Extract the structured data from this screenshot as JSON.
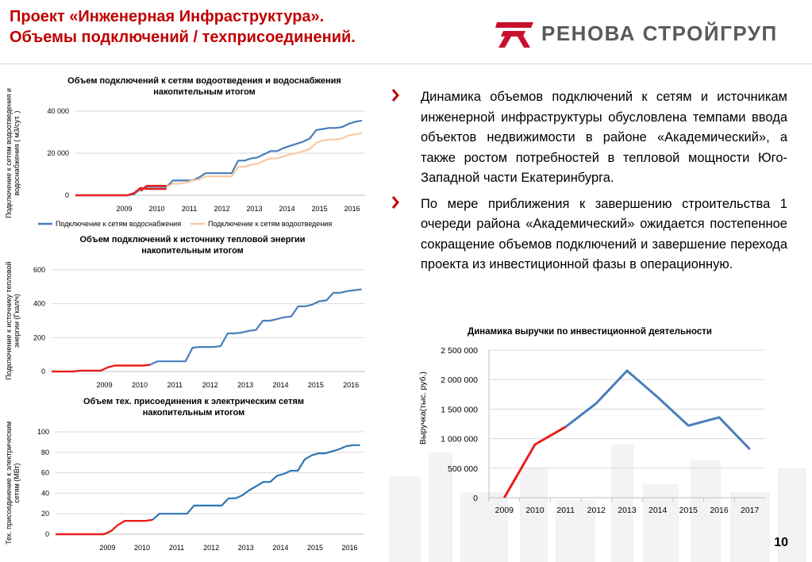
{
  "header": {
    "title_line1": "Проект «Инженерная Инфраструктура».",
    "title_line2": "Объемы подключений / техприсоединений.",
    "logo_text": "РЕНОВА СТРОЙГРУП"
  },
  "colors": {
    "accent_red": "#c00000",
    "blue": "#4a7ebb",
    "orange": "#f9c9a0",
    "red_line": "#e8201c",
    "grid": "#d9d9d9"
  },
  "bullets": [
    "Динамика объемов подключений к сетям и источникам инженерной инфраструктуры обусловлена темпами ввода объектов недвижимости в районе «Академический», а также ростом потребностей в тепловой мощности Юго-Западной части Екатеринбурга.",
    "По мере приближения к завершению строительства 1 очереди района «Академический» ожидается постепенное сокращение объемов подключений и завершение перехода проекта из инвестиционной фазы в операционную."
  ],
  "page_number": "10",
  "chart_data": [
    {
      "type": "line",
      "title_line1": "Объем подключений к сетям водоотведения и водоснабжения",
      "title_line2": "накопительным итогом",
      "ylabel_line1": "Подключение к сетям водоотведения и",
      "ylabel_line2": "водоснабжения ( м3/сут. )",
      "ylim": [
        0,
        40000
      ],
      "yticks": [
        "0",
        "20 000",
        "40 000"
      ],
      "year_labels": [
        "2009",
        "2010",
        "2011",
        "2012",
        "2013",
        "2014",
        "2015",
        "2016"
      ],
      "xlim": [
        2008.0,
        2016.9
      ],
      "legend": [
        "Подключение к сетям  водоснабжения",
        "Подключение к сетям водоотведения"
      ],
      "series": [
        {
          "name": "Подключение к сетям  водоснабжения",
          "color": "#4a7ebb",
          "x": [
            2008.0,
            2008.2,
            2008.4,
            2008.6,
            2008.8,
            2009.0,
            2009.2,
            2009.4,
            2009.6,
            2009.8,
            2010.0,
            2010.2,
            2010.4,
            2010.6,
            2010.8,
            2011.0,
            2011.2,
            2011.4,
            2011.6,
            2011.8,
            2012.0,
            2012.2,
            2012.4,
            2012.6,
            2012.8,
            2013.0,
            2013.2,
            2013.4,
            2013.6,
            2013.8,
            2014.0,
            2014.2,
            2014.4,
            2014.6,
            2014.8,
            2015.0,
            2015.2,
            2015.4,
            2015.6,
            2015.8,
            2016.0,
            2016.2,
            2016.4,
            2016.6,
            2016.8
          ],
          "y": [
            0,
            0,
            0,
            0,
            0,
            0,
            0,
            0,
            0,
            500,
            3000,
            4000,
            4000,
            4000,
            4000,
            7000,
            7000,
            7000,
            7000,
            8500,
            10500,
            10500,
            10500,
            10500,
            10500,
            16500,
            16500,
            17500,
            18000,
            19500,
            21000,
            21000,
            22500,
            23500,
            24500,
            25500,
            27000,
            31000,
            31500,
            32000,
            32000,
            32500,
            34000,
            35000,
            35500
          ]
        },
        {
          "name": "Подключение к сетям водоотведения",
          "color": "#f9c9a0",
          "x": [
            2010.8,
            2011.0,
            2011.2,
            2011.4,
            2011.6,
            2011.8,
            2012.0,
            2012.2,
            2012.4,
            2012.6,
            2012.8,
            2013.0,
            2013.2,
            2013.4,
            2013.6,
            2013.8,
            2014.0,
            2014.2,
            2014.4,
            2014.6,
            2014.8,
            2015.0,
            2015.2,
            2015.4,
            2015.6,
            2015.8,
            2016.0,
            2016.2,
            2016.4,
            2016.6,
            2016.8
          ],
          "y": [
            4000,
            5500,
            5500,
            6000,
            7000,
            7500,
            9000,
            9000,
            9000,
            9000,
            9000,
            13500,
            13500,
            14500,
            15000,
            16500,
            17500,
            17500,
            18500,
            19500,
            20000,
            21000,
            22000,
            25000,
            26000,
            26500,
            26500,
            27000,
            28500,
            29000,
            29500
          ]
        },
        {
          "name": "",
          "color": "#e8201c",
          "x": [
            2008.0,
            2008.2,
            2008.4,
            2008.6,
            2008.8,
            2009.0,
            2009.2,
            2009.4,
            2009.6,
            2009.8,
            2010.0,
            2010.2,
            2010.4,
            2010.6,
            2010.8
          ],
          "y": [
            0,
            0,
            0,
            0,
            0,
            0,
            0,
            0,
            0,
            1000,
            3500,
            3000,
            3000,
            3000,
            3000
          ]
        },
        {
          "name": "",
          "color": "#e8201c",
          "x": [
            2010.0,
            2010.2,
            2010.4,
            2010.6,
            2010.8
          ],
          "y": [
            2000,
            4500,
            4500,
            4500,
            4500
          ]
        }
      ]
    },
    {
      "type": "line",
      "title_line1": "Объем подключений к источнику тепловой энергии",
      "title_line2": "накопительным итогом",
      "ylabel_line1": "Подключение к источнику тепловой",
      "ylabel_line2": "энергии (Гкал/ч)",
      "ylim": [
        0,
        600
      ],
      "yticks": [
        "0",
        "200",
        "400",
        "600"
      ],
      "year_labels": [
        "2009",
        "2010",
        "2011",
        "2012",
        "2013",
        "2014",
        "2015",
        "2016"
      ],
      "xlim": [
        2008.0,
        2016.9
      ],
      "series": [
        {
          "name": "",
          "color": "#4a7ebb",
          "x": [
            2010.8,
            2011.0,
            2011.2,
            2011.4,
            2011.6,
            2011.8,
            2012.0,
            2012.2,
            2012.4,
            2012.6,
            2012.8,
            2013.0,
            2013.2,
            2013.4,
            2013.6,
            2013.8,
            2014.0,
            2014.2,
            2014.4,
            2014.6,
            2014.8,
            2015.0,
            2015.2,
            2015.4,
            2015.6,
            2015.8,
            2016.0,
            2016.2,
            2016.4,
            2016.6,
            2016.8
          ],
          "y": [
            40,
            60,
            60,
            60,
            60,
            60,
            140,
            145,
            145,
            145,
            150,
            225,
            225,
            230,
            240,
            245,
            300,
            300,
            310,
            320,
            325,
            385,
            385,
            395,
            415,
            420,
            465,
            465,
            475,
            480,
            485
          ]
        },
        {
          "name": "",
          "color": "#e8201c",
          "x": [
            2008.0,
            2008.2,
            2008.4,
            2008.6,
            2008.8,
            2009.0,
            2009.2,
            2009.4,
            2009.6,
            2009.8,
            2010.0,
            2010.2,
            2010.4,
            2010.6,
            2010.8
          ],
          "y": [
            0,
            0,
            0,
            0,
            5,
            5,
            5,
            5,
            25,
            35,
            35,
            35,
            35,
            35,
            40
          ]
        }
      ]
    },
    {
      "type": "line",
      "title_line1": "Объем тех. присоединения к электрическим сетям",
      "title_line2": "накопительным итогом",
      "ylabel_line1": "Тех. присоединение к электрическим",
      "ylabel_line2": "сетям (МВт)",
      "ylim": [
        0,
        100
      ],
      "yticks": [
        "0",
        "20",
        "40",
        "60",
        "80",
        "100"
      ],
      "year_labels": [
        "2009",
        "2010",
        "2011",
        "2012",
        "2013",
        "2014",
        "2015",
        "2016"
      ],
      "xlim": [
        2008.0,
        2016.9
      ],
      "series": [
        {
          "name": "",
          "color": "#2e75b6",
          "x": [
            2010.8,
            2011.0,
            2011.2,
            2011.4,
            2011.6,
            2011.8,
            2012.0,
            2012.2,
            2012.4,
            2012.6,
            2012.8,
            2013.0,
            2013.2,
            2013.4,
            2013.6,
            2013.8,
            2014.0,
            2014.2,
            2014.4,
            2014.6,
            2014.8,
            2015.0,
            2015.2,
            2015.4,
            2015.6,
            2015.8,
            2016.0,
            2016.2,
            2016.4,
            2016.6,
            2016.8
          ],
          "y": [
            14,
            20,
            20,
            20,
            20,
            20,
            28,
            28,
            28,
            28,
            28,
            35,
            35,
            38,
            43,
            47,
            51,
            51,
            57,
            59,
            62,
            62,
            73,
            77,
            79,
            79,
            81,
            83,
            86,
            87,
            87
          ]
        },
        {
          "name": "",
          "color": "#e8201c",
          "x": [
            2008.0,
            2008.2,
            2008.4,
            2008.6,
            2008.8,
            2009.0,
            2009.2,
            2009.4,
            2009.6,
            2009.8,
            2010.0,
            2010.2,
            2010.4,
            2010.6,
            2010.8
          ],
          "y": [
            0,
            0,
            0,
            0,
            0,
            0,
            0,
            0,
            3,
            9,
            13,
            13,
            13,
            13,
            14
          ]
        }
      ]
    },
    {
      "type": "line",
      "title": "Динамика выручки по инвестиционной деятельности",
      "ylabel": "Выручка(тыс. руб.)",
      "ylim": [
        0,
        2500000
      ],
      "yticks": [
        "0",
        "500 000",
        "1 000 000",
        "1 500 000",
        "2 000 000",
        "2 500 000"
      ],
      "categories": [
        "2009",
        "2010",
        "2011",
        "2012",
        "2013",
        "2014",
        "2015",
        "2016",
        "2017"
      ],
      "series": [
        {
          "name": "",
          "color": "#4a7ebb",
          "values": [
            null,
            null,
            1200000,
            1600000,
            2150000,
            1700000,
            1220000,
            1360000,
            820000
          ]
        },
        {
          "name": "",
          "color": "#e8201c",
          "values": [
            0,
            900000,
            1200000,
            null,
            null,
            null,
            null,
            null,
            null
          ]
        }
      ]
    }
  ]
}
